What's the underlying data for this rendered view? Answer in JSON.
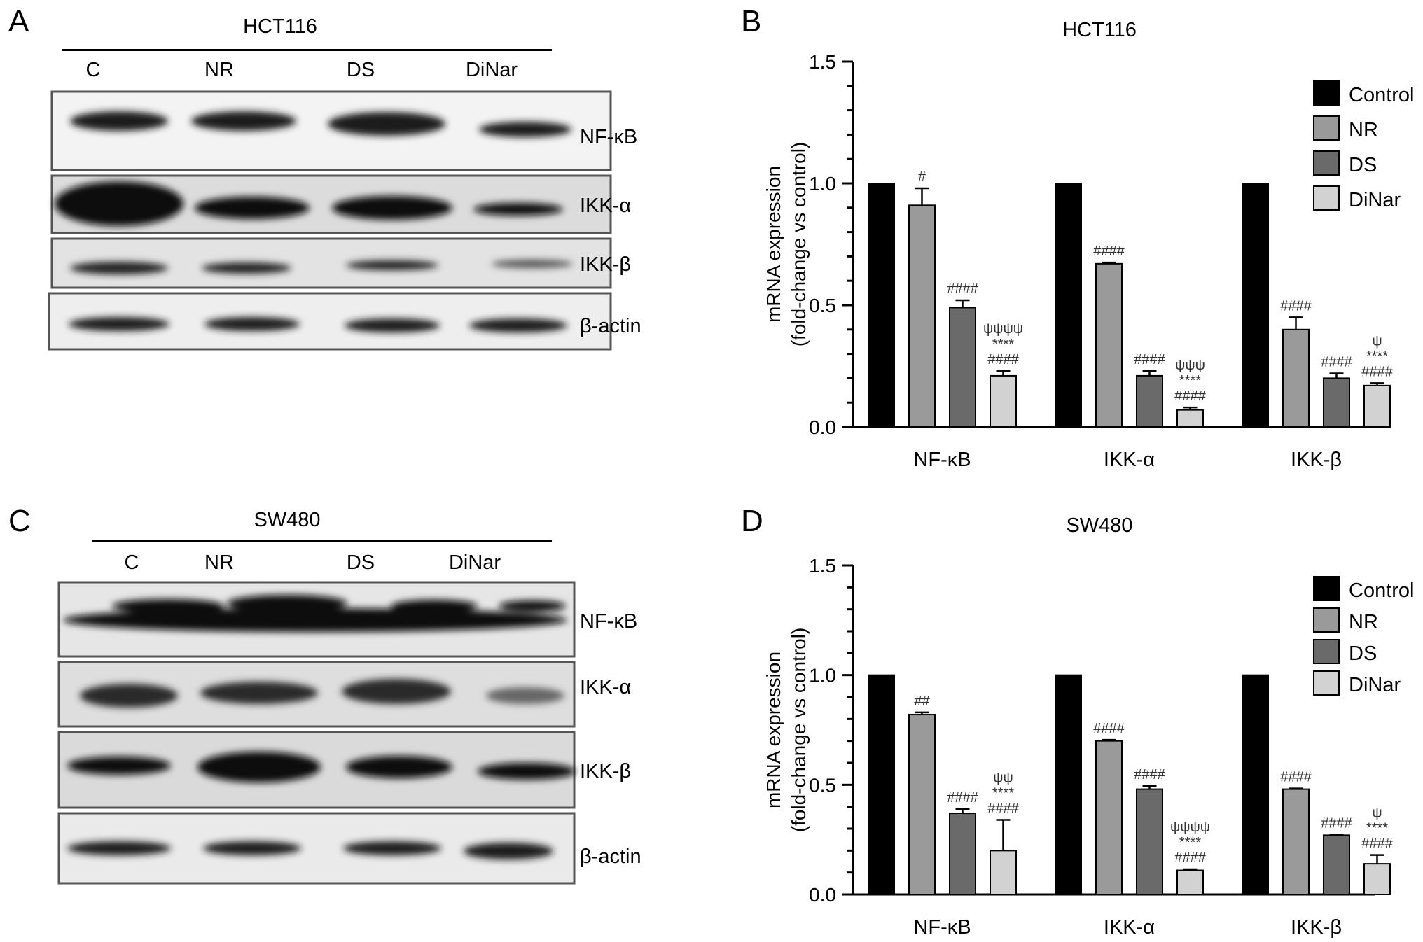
{
  "panels": {
    "A": {
      "letter": "A",
      "cell_line": "HCT116",
      "lanes": [
        "C",
        "NR",
        "DS",
        "DiNar"
      ],
      "proteins": [
        "NF-κB",
        "IKK-α",
        "IKK-β",
        "β-actin"
      ]
    },
    "C": {
      "letter": "C",
      "cell_line": "SW480",
      "lanes": [
        "C",
        "NR",
        "DS",
        "DiNar"
      ],
      "proteins": [
        "NF-κB",
        "IKK-α",
        "IKK-β",
        "β-actin"
      ]
    },
    "B": {
      "letter": "B"
    },
    "D": {
      "letter": "D"
    }
  },
  "colors": {
    "Control": "#000000",
    "NR": "#9a9a9a",
    "DS": "#6a6a6a",
    "DiNar": "#d2d2d2"
  },
  "chart_data": [
    {
      "type": "bar",
      "title": "HCT116",
      "ylabel": "mRNA expression (fold-change vs control)",
      "ylabel_lines": [
        "mRNA expression",
        "(fold-change vs control)"
      ],
      "ylim": [
        0,
        1.5
      ],
      "yticks": [
        "0.0",
        "0.5",
        "1.0",
        "1.5"
      ],
      "categories": [
        "NF-κB",
        "IKK-α",
        "IKK-β"
      ],
      "legend_position": "top-right",
      "series": [
        {
          "name": "Control",
          "values": [
            1.0,
            1.0,
            1.0
          ],
          "errors": [
            0,
            0,
            0
          ],
          "annotations": [
            [],
            [],
            []
          ]
        },
        {
          "name": "NR",
          "values": [
            0.91,
            0.67,
            0.4
          ],
          "errors": [
            0.07,
            0.005,
            0.05
          ],
          "annotations": [
            [
              "#"
            ],
            [
              "####"
            ],
            [
              "####"
            ]
          ]
        },
        {
          "name": "DS",
          "values": [
            0.49,
            0.21,
            0.2
          ],
          "errors": [
            0.03,
            0.02,
            0.02
          ],
          "annotations": [
            [
              "####"
            ],
            [
              "####"
            ],
            [
              "####"
            ]
          ]
        },
        {
          "name": "DiNar",
          "values": [
            0.21,
            0.07,
            0.17
          ],
          "errors": [
            0.02,
            0.01,
            0.01
          ],
          "annotations": [
            [
              "ψψψψ",
              "****",
              "####"
            ],
            [
              "ψψψ",
              "****",
              "####"
            ],
            [
              "ψ",
              "****",
              "####"
            ]
          ]
        }
      ]
    },
    {
      "type": "bar",
      "title": "SW480",
      "ylabel": "mRNA expression (fold-change vs control)",
      "ylabel_lines": [
        "mRNA expression",
        "(fold-change vs control)"
      ],
      "ylim": [
        0,
        1.5
      ],
      "yticks": [
        "0.0",
        "0.5",
        "1.0",
        "1.5"
      ],
      "categories": [
        "NF-κB",
        "IKK-α",
        "IKK-β"
      ],
      "legend_position": "top-right",
      "series": [
        {
          "name": "Control",
          "values": [
            1.0,
            1.0,
            1.0
          ],
          "errors": [
            0,
            0,
            0
          ],
          "annotations": [
            [],
            [],
            []
          ]
        },
        {
          "name": "NR",
          "values": [
            0.82,
            0.7,
            0.48
          ],
          "errors": [
            0.01,
            0.005,
            0.003
          ],
          "annotations": [
            [
              "##"
            ],
            [
              "####"
            ],
            [
              "####"
            ]
          ]
        },
        {
          "name": "DS",
          "values": [
            0.37,
            0.48,
            0.27
          ],
          "errors": [
            0.02,
            0.015,
            0.003
          ],
          "annotations": [
            [
              "####"
            ],
            [
              "####"
            ],
            [
              "####"
            ]
          ]
        },
        {
          "name": "DiNar",
          "values": [
            0.2,
            0.11,
            0.14
          ],
          "errors": [
            0.14,
            0.005,
            0.04
          ],
          "annotations": [
            [
              "ψψ",
              "****",
              "####"
            ],
            [
              "ψψψψ",
              "****",
              "####"
            ],
            [
              "ψ",
              "****",
              "####"
            ]
          ]
        }
      ]
    }
  ]
}
